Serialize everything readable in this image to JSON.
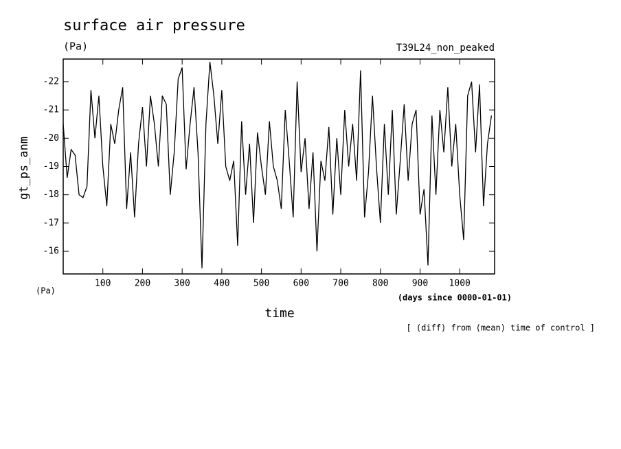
{
  "chart_data": {
    "type": "line",
    "title": "surface air pressure",
    "units_label": "(Pa)",
    "run_label": "T39L24_non_peaked",
    "ylabel": "gt_ps_anm",
    "y_units_label": "(Pa)",
    "xlabel": "time",
    "x_units_label": "(days since 0000-01-01)",
    "footnote": "[ (diff) from (mean) time of control ]",
    "xlim": [
      0,
      1088
    ],
    "ylim": [
      -15.2,
      -22.8
    ],
    "xticks": [
      100,
      200,
      300,
      400,
      500,
      600,
      700,
      800,
      900,
      1000
    ],
    "yticks": [
      -22,
      -21,
      -20,
      -19,
      -18,
      -17,
      -16
    ],
    "x": [
      0,
      10,
      20,
      30,
      40,
      50,
      60,
      70,
      80,
      90,
      100,
      110,
      120,
      130,
      140,
      150,
      160,
      170,
      180,
      190,
      200,
      210,
      220,
      230,
      240,
      250,
      260,
      270,
      280,
      290,
      300,
      310,
      320,
      330,
      340,
      350,
      360,
      370,
      380,
      390,
      400,
      410,
      420,
      430,
      440,
      450,
      460,
      470,
      480,
      490,
      500,
      510,
      520,
      530,
      540,
      550,
      560,
      570,
      580,
      590,
      600,
      610,
      620,
      630,
      640,
      650,
      660,
      670,
      680,
      690,
      700,
      710,
      720,
      730,
      740,
      750,
      760,
      770,
      780,
      790,
      800,
      810,
      820,
      830,
      840,
      850,
      860,
      870,
      880,
      890,
      900,
      910,
      920,
      930,
      940,
      950,
      960,
      970,
      980,
      990,
      1000,
      1010,
      1020,
      1030,
      1040,
      1050,
      1060,
      1070,
      1080
    ],
    "series": [
      {
        "color": "#000000",
        "values": [
          -20.5,
          -18.6,
          -19.6,
          -19.4,
          -18.0,
          -17.9,
          -18.3,
          -21.7,
          -20.0,
          -21.5,
          -19.0,
          -17.6,
          -20.5,
          -19.8,
          -21.0,
          -21.8,
          -17.5,
          -19.5,
          -17.2,
          -19.8,
          -21.1,
          -19.0,
          -21.5,
          -20.5,
          -19.0,
          -21.5,
          -21.2,
          -18.0,
          -19.5,
          -22.1,
          -22.5,
          -18.9,
          -20.5,
          -21.8,
          -19.5,
          -15.4,
          -20.5,
          -22.7,
          -21.5,
          -19.8,
          -21.7,
          -19.0,
          -18.5,
          -19.2,
          -16.2,
          -20.6,
          -18.0,
          -19.8,
          -17.0,
          -20.2,
          -19.0,
          -18.0,
          -20.6,
          -19.0,
          -18.5,
          -17.5,
          -21.0,
          -19.2,
          -17.2,
          -22.0,
          -18.8,
          -20.0,
          -17.5,
          -19.5,
          -16.0,
          -19.2,
          -18.5,
          -20.4,
          -17.3,
          -20.0,
          -18.0,
          -21.0,
          -19.0,
          -20.5,
          -18.5,
          -22.4,
          -17.2,
          -18.8,
          -21.5,
          -19.0,
          -17.0,
          -20.5,
          -18.0,
          -21.0,
          -17.3,
          -19.2,
          -21.2,
          -18.5,
          -20.5,
          -21.0,
          -17.3,
          -18.2,
          -15.5,
          -20.8,
          -18.0,
          -21.0,
          -19.5,
          -21.8,
          -19.0,
          -20.5,
          -18.0,
          -16.4,
          -21.5,
          -22.0,
          -19.5,
          -21.9,
          -17.6,
          -19.8,
          -20.8
        ]
      }
    ]
  }
}
